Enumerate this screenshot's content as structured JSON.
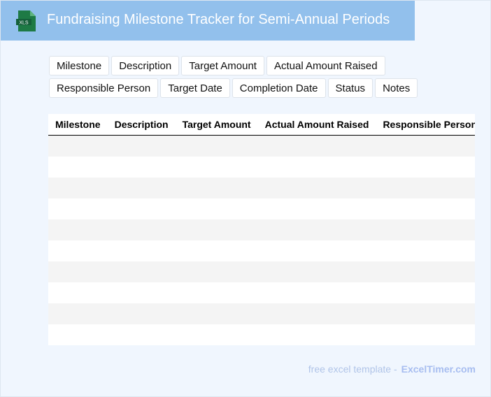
{
  "header": {
    "title": "Fundraising Milestone Tracker for Semi-Annual Periods",
    "logo_text": "XLS",
    "logo_color": "#1e7a45",
    "bg_color": "#92c0ec"
  },
  "tags": {
    "row1": [
      "Milestone",
      "Description",
      "Target Amount",
      "Actual Amount Raised"
    ],
    "row2": [
      "Responsible Person",
      "Target Date",
      "Completion Date",
      "Status",
      "Notes"
    ]
  },
  "table": {
    "columns": [
      "Milestone",
      "Description",
      "Target Amount",
      "Actual Amount Raised",
      "Responsible Person",
      "Target Date",
      "Completion Date",
      "Status",
      "Notes"
    ],
    "row_count": 10
  },
  "footer": {
    "text": "free excel template -",
    "brand": "ExcelTimer.com"
  }
}
